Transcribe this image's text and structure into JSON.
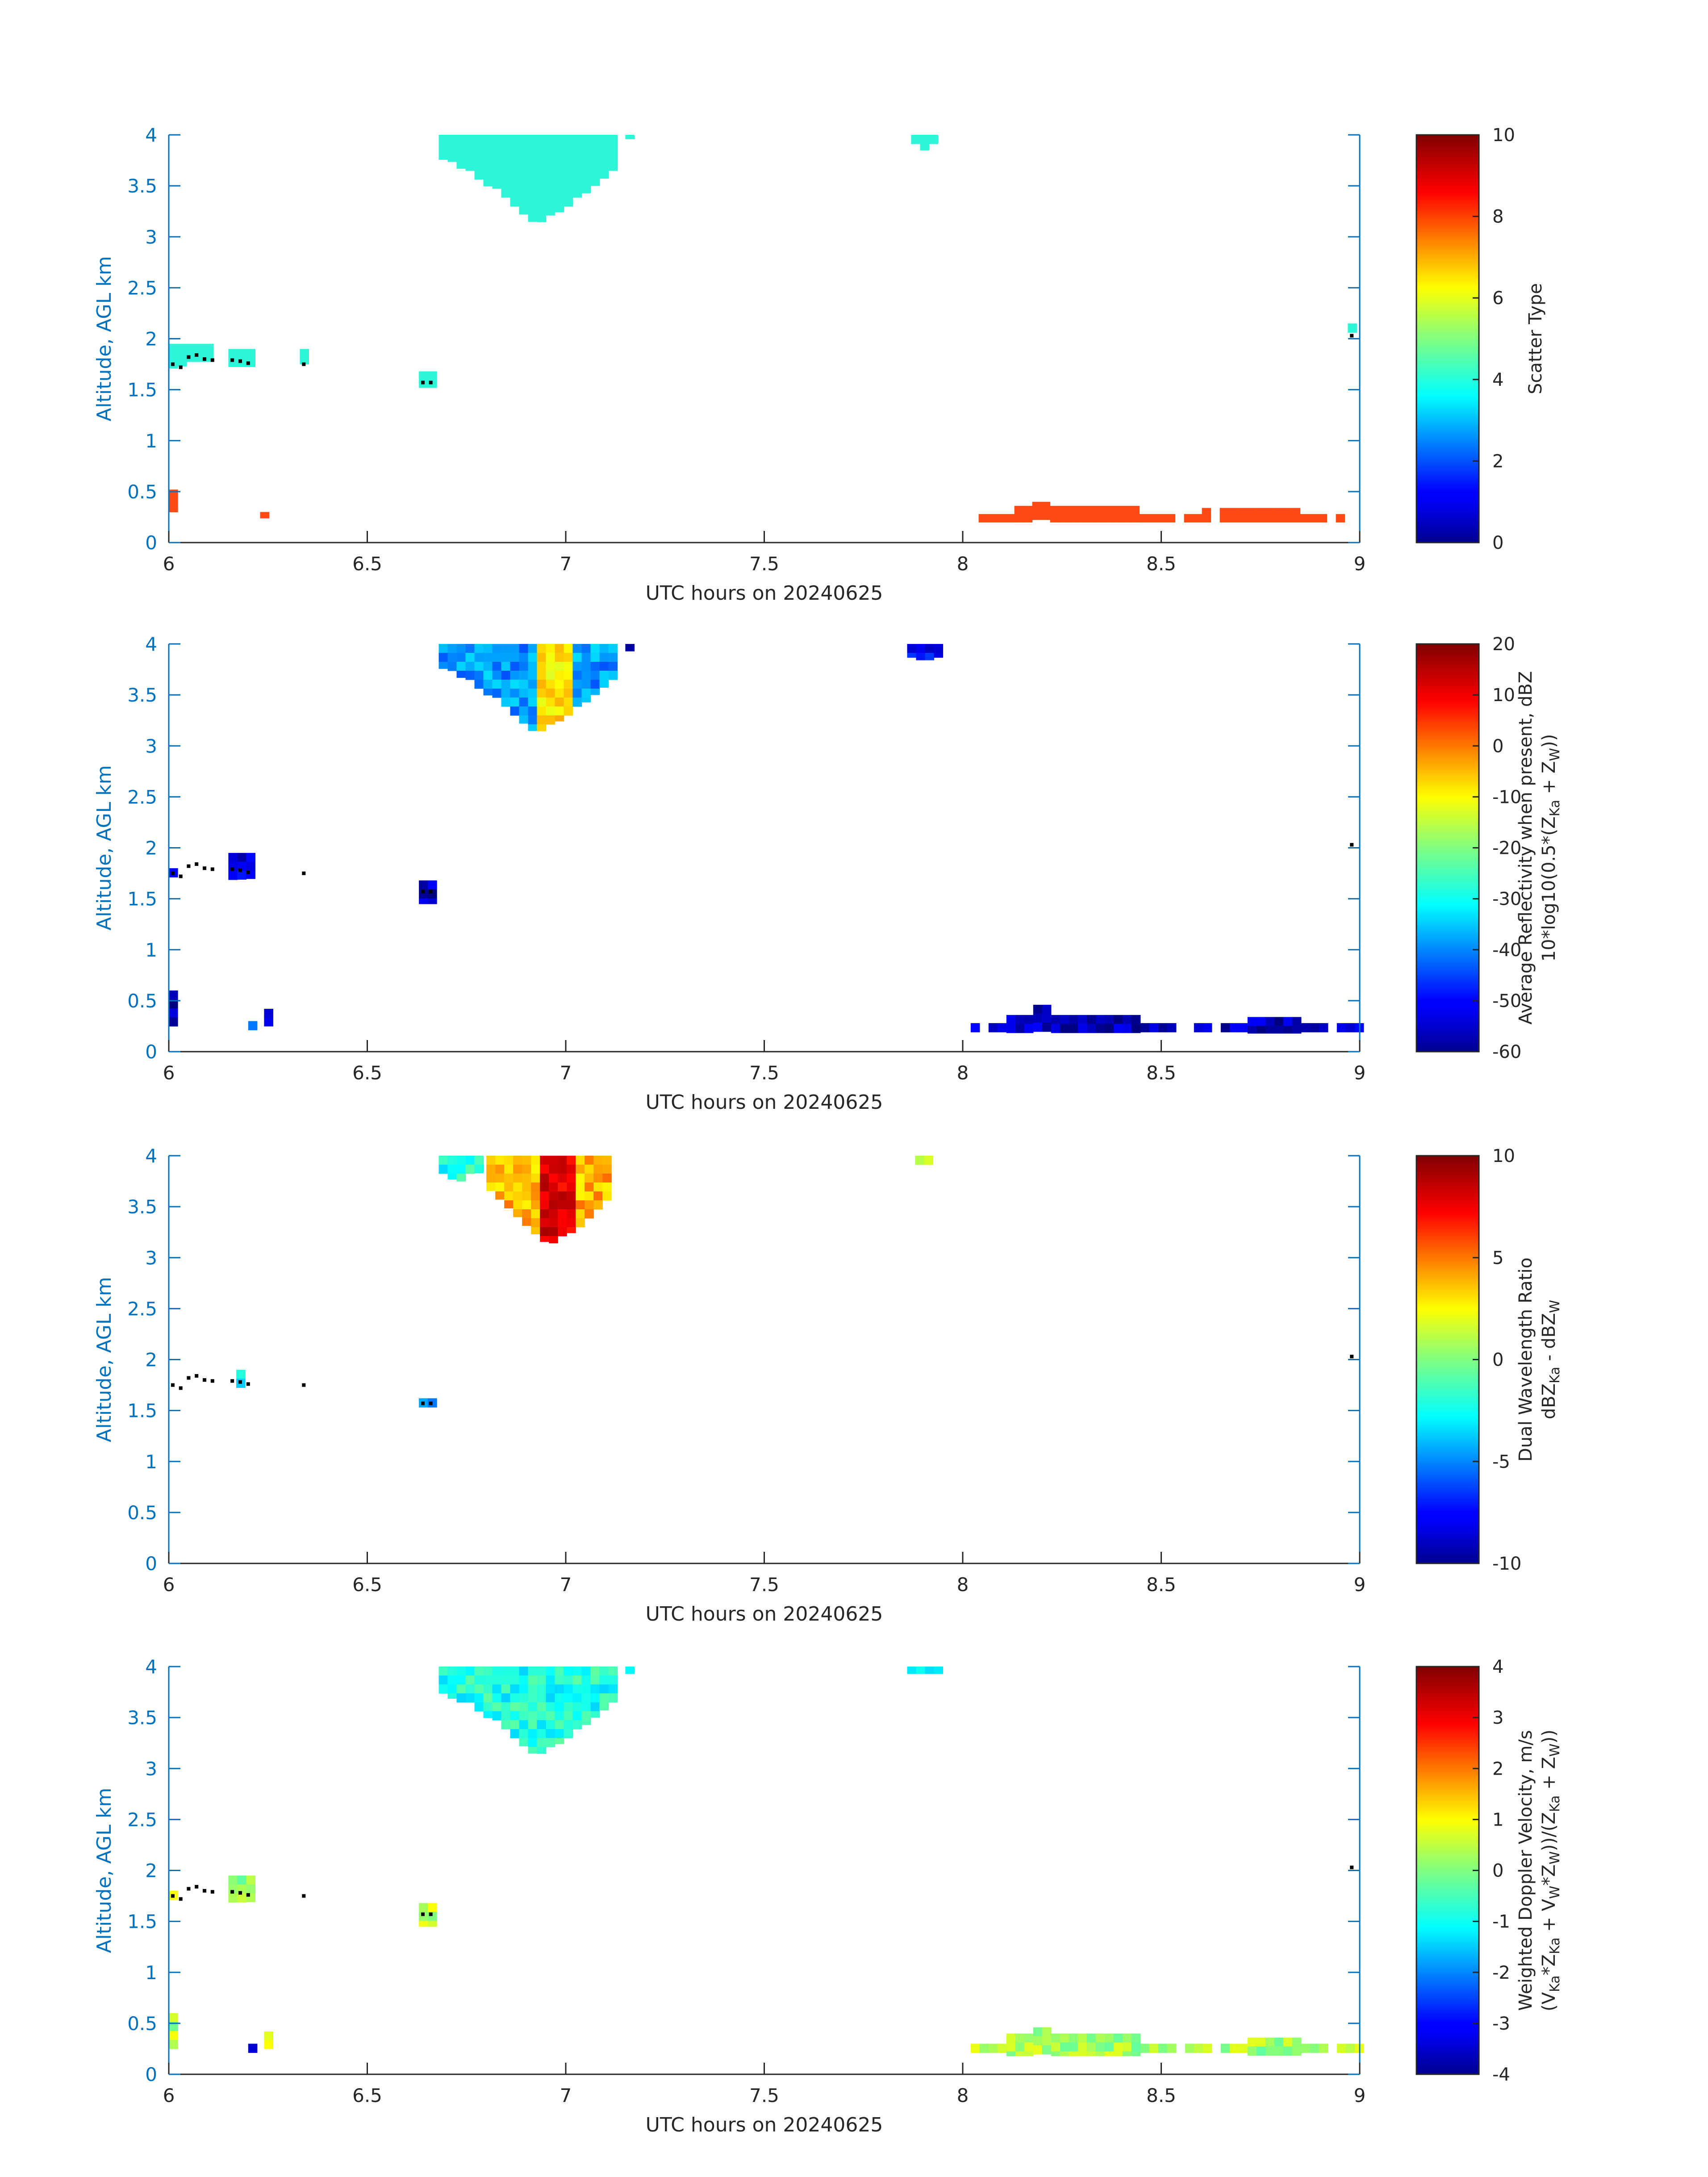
{
  "colors": {
    "y_axis": "#0072bd",
    "text": "#262626",
    "colormap": "jet",
    "scatter_cloud": "#2ef5d8",
    "scatter_precip": "#ff4a14",
    "marker": "#000000"
  },
  "chart_data": [
    {
      "type": "heatmap",
      "title": "",
      "xlabel": "UTC hours on 20240625",
      "ylabel": "Altitude, AGL km",
      "xlim": [
        6,
        9
      ],
      "ylim": [
        0,
        4
      ],
      "xticks": [
        "6",
        "6.5",
        "7",
        "7.5",
        "8",
        "8.5",
        "9"
      ],
      "yticks": [
        "0",
        "0.5",
        "1",
        "1.5",
        "2",
        "2.5",
        "3",
        "3.5",
        "4"
      ],
      "colorbar": {
        "label_lines": [
          "Scatter Type"
        ],
        "clim": [
          0,
          10
        ],
        "ticks": [
          "0",
          "2",
          "4",
          "6",
          "8",
          "10"
        ]
      },
      "regions": [
        {
          "value": 3.5,
          "x": [
            6.68,
            7.12
          ],
          "top": 4.0,
          "bottom": [
            3.78,
            3.7,
            3.62,
            3.5,
            3.4,
            3.25,
            3.12,
            3.2,
            3.3,
            3.42,
            3.55,
            3.68
          ]
        },
        {
          "value": 3.5,
          "x": [
            7.15,
            7.17
          ],
          "top": 4.0,
          "bottom": [
            3.96
          ]
        },
        {
          "value": 3.5,
          "x": [
            7.87,
            7.93
          ],
          "top": 4.0,
          "bottom": [
            3.9,
            3.85,
            3.9
          ]
        },
        {
          "value": 3.5,
          "x": [
            6.0,
            6.12
          ],
          "top": 1.95,
          "bottom": [
            1.7,
            1.75,
            1.78
          ]
        },
        {
          "value": 3.5,
          "x": [
            6.15,
            6.22
          ],
          "top": 1.9,
          "bottom": [
            1.72,
            1.7
          ]
        },
        {
          "value": 3.5,
          "x": [
            6.33,
            6.35
          ],
          "top": 1.9,
          "bottom": [
            1.75
          ]
        },
        {
          "value": 3.5,
          "x": [
            6.63,
            6.67
          ],
          "top": 1.68,
          "bottom": [
            1.52
          ]
        },
        {
          "value": 3.5,
          "x": [
            8.97,
            8.99
          ],
          "top": 2.15,
          "bottom": [
            2.02
          ]
        },
        {
          "value": 8.0,
          "x": [
            6.0,
            6.02
          ],
          "top": 0.52,
          "bottom": [
            0.3
          ]
        },
        {
          "value": 8.0,
          "x": [
            6.23,
            6.25
          ],
          "top": 0.3,
          "bottom": [
            0.24
          ]
        },
        {
          "value": 8.0,
          "x": [
            8.04,
            8.97
          ],
          "top": 0.28,
          "bottom": [
            0.2
          ],
          "bumps": [
            [
              8.12,
              8.45,
              0.36
            ],
            [
              8.17,
              8.22,
              0.4
            ],
            [
              8.6,
              8.85,
              0.34
            ]
          ],
          "gaps": [
            [
              8.54,
              8.57
            ],
            [
              8.62,
              8.66
            ],
            [
              8.92,
              8.95
            ]
          ]
        }
      ],
      "markers": {
        "x": [
          6.01,
          6.03,
          6.05,
          6.07,
          6.09,
          6.11,
          6.16,
          6.18,
          6.2,
          6.34,
          6.64,
          6.66,
          8.98
        ],
        "y": [
          1.75,
          1.72,
          1.82,
          1.84,
          1.8,
          1.79,
          1.79,
          1.78,
          1.76,
          1.75,
          1.57,
          1.57,
          2.03
        ]
      }
    },
    {
      "type": "heatmap",
      "title": "",
      "xlabel": "UTC hours on 20240625",
      "ylabel": "Altitude, AGL km",
      "xlim": [
        6,
        9
      ],
      "ylim": [
        0,
        4
      ],
      "xticks": [
        "6",
        "6.5",
        "7",
        "7.5",
        "8",
        "8.5",
        "9"
      ],
      "yticks": [
        "0",
        "0.5",
        "1",
        "1.5",
        "2",
        "2.5",
        "3",
        "3.5",
        "4"
      ],
      "colorbar": {
        "label_lines": [
          "Average Reflectivity when present, dBZ",
          "10*log10(0.5*(Z",
          "Ka",
          " + Z",
          "W",
          "))"
        ],
        "clim": [
          -60,
          20
        ],
        "ticks": [
          "-60",
          "-50",
          "-40",
          "-30",
          "-20",
          "-10",
          "0",
          "10",
          "20"
        ]
      },
      "regions": [
        {
          "value": -38,
          "x": [
            6.68,
            7.12
          ],
          "top": 4.0,
          "bottom": [
            3.78,
            3.7,
            3.62,
            3.5,
            3.4,
            3.25,
            3.12,
            3.2,
            3.3,
            3.42,
            3.55,
            3.68
          ],
          "core": [
            6.92,
            7.02,
            -8
          ]
        },
        {
          "value": -55,
          "x": [
            7.15,
            7.17
          ],
          "top": 4.0,
          "bottom": [
            3.93
          ]
        },
        {
          "value": -50,
          "x": [
            7.86,
            7.94
          ],
          "top": 4.0,
          "bottom": [
            3.88,
            3.83,
            3.88
          ]
        },
        {
          "value": -55,
          "x": [
            6.0,
            6.02
          ],
          "top": 1.8,
          "bottom": [
            1.68
          ]
        },
        {
          "value": -52,
          "x": [
            6.15,
            6.22
          ],
          "top": 1.95,
          "bottom": [
            1.68,
            1.7
          ]
        },
        {
          "value": -55,
          "x": [
            6.63,
            6.67
          ],
          "top": 1.68,
          "bottom": [
            1.45
          ]
        },
        {
          "value": -58,
          "x": [
            6.0,
            6.02
          ],
          "top": 0.6,
          "bottom": [
            0.25
          ]
        },
        {
          "value": -45,
          "x": [
            6.2,
            6.22
          ],
          "top": 0.3,
          "bottom": [
            0.18
          ]
        },
        {
          "value": -55,
          "x": [
            6.24,
            6.26
          ],
          "top": 0.42,
          "bottom": [
            0.25
          ]
        },
        {
          "value": -55,
          "x": [
            8.02,
            9.0
          ],
          "top": 0.28,
          "bottom": [
            0.18
          ],
          "bumps": [
            [
              8.1,
              8.45,
              0.36
            ],
            [
              8.17,
              8.22,
              0.46
            ],
            [
              8.72,
              8.85,
              0.34
            ]
          ],
          "gaps": [
            [
              8.05,
              8.07
            ],
            [
              8.54,
              8.57
            ],
            [
              8.62,
              8.64
            ],
            [
              8.92,
              8.94
            ]
          ]
        }
      ],
      "markers": {
        "x": [
          6.01,
          6.03,
          6.05,
          6.07,
          6.09,
          6.11,
          6.16,
          6.18,
          6.2,
          6.34,
          6.64,
          6.66,
          8.98
        ],
        "y": [
          1.75,
          1.72,
          1.82,
          1.84,
          1.8,
          1.79,
          1.79,
          1.78,
          1.76,
          1.75,
          1.57,
          1.57,
          2.03
        ]
      }
    },
    {
      "type": "heatmap",
      "title": "",
      "xlabel": "UTC hours on 20240625",
      "ylabel": "Altitude, AGL km",
      "xlim": [
        6,
        9
      ],
      "ylim": [
        0,
        4
      ],
      "xticks": [
        "6",
        "6.5",
        "7",
        "7.5",
        "8",
        "8.5",
        "9"
      ],
      "yticks": [
        "0",
        "0.5",
        "1",
        "1.5",
        "2",
        "2.5",
        "3",
        "3.5",
        "4"
      ],
      "colorbar": {
        "label_lines": [
          "Dual Wavelength Ratio",
          "dBZ",
          "Ka",
          " - dBZ",
          "W"
        ],
        "clim": [
          -10,
          10
        ],
        "ticks": [
          "-10",
          "-5",
          "0",
          "5",
          "10"
        ]
      },
      "regions": [
        {
          "value": -2,
          "x": [
            6.68,
            6.8
          ],
          "top": 4.0,
          "bottom": [
            3.8,
            3.75,
            3.85
          ]
        },
        {
          "value": 4,
          "x": [
            6.8,
            7.12
          ],
          "top": 4.0,
          "bottom": [
            3.7,
            3.55,
            3.4,
            3.25,
            3.12,
            3.2,
            3.3,
            3.45,
            3.6
          ],
          "core": [
            6.94,
            7.02,
            8
          ]
        },
        {
          "value": 2,
          "x": [
            7.88,
            7.92
          ],
          "top": 4.0,
          "bottom": [
            3.9
          ]
        },
        {
          "value": -3,
          "x": [
            6.17,
            6.18
          ],
          "top": 1.9,
          "bottom": [
            1.7
          ]
        },
        {
          "value": -4,
          "x": [
            6.63,
            6.67
          ],
          "top": 1.62,
          "bottom": [
            1.5
          ]
        }
      ],
      "markers": {
        "x": [
          6.01,
          6.03,
          6.05,
          6.07,
          6.09,
          6.11,
          6.16,
          6.18,
          6.2,
          6.34,
          6.64,
          6.66,
          8.98
        ],
        "y": [
          1.75,
          1.72,
          1.82,
          1.84,
          1.8,
          1.79,
          1.79,
          1.78,
          1.76,
          1.75,
          1.57,
          1.57,
          2.03
        ]
      }
    },
    {
      "type": "heatmap",
      "title": "",
      "xlabel": "UTC hours on 20240625",
      "ylabel": "Altitude, AGL km",
      "xlim": [
        6,
        9
      ],
      "ylim": [
        0,
        4
      ],
      "xticks": [
        "6",
        "6.5",
        "7",
        "7.5",
        "8",
        "8.5",
        "9"
      ],
      "yticks": [
        "0",
        "0.5",
        "1",
        "1.5",
        "2",
        "2.5",
        "3",
        "3.5",
        "4"
      ],
      "colorbar": {
        "label_lines": [
          "Weighted Doppler Velocity, m/s",
          "(V",
          "Ka",
          "*Z",
          "Ka",
          " + V",
          "W",
          "*Z",
          "W",
          "))/(Z",
          "Ka",
          " + Z",
          "W",
          "))"
        ],
        "clim": [
          -4,
          4
        ],
        "ticks": [
          "-4",
          "-3",
          "-2",
          "-1",
          "0",
          "1",
          "2",
          "3",
          "4"
        ]
      },
      "regions": [
        {
          "value": -0.8,
          "x": [
            6.68,
            7.12
          ],
          "top": 4.0,
          "bottom": [
            3.72,
            3.68,
            3.6,
            3.5,
            3.4,
            3.25,
            3.12,
            3.2,
            3.3,
            3.42,
            3.55,
            3.68
          ]
        },
        {
          "value": -0.8,
          "x": [
            7.15,
            7.17
          ],
          "top": 4.0,
          "bottom": [
            3.93
          ]
        },
        {
          "value": -0.8,
          "x": [
            7.86,
            7.94
          ],
          "top": 4.0,
          "bottom": [
            3.93
          ]
        },
        {
          "value": 0.5,
          "x": [
            6.0,
            6.02
          ],
          "top": 1.8,
          "bottom": [
            1.68
          ]
        },
        {
          "value": 0.2,
          "x": [
            6.15,
            6.22
          ],
          "top": 1.95,
          "bottom": [
            1.65,
            1.7
          ]
        },
        {
          "value": 0.5,
          "x": [
            6.63,
            6.67
          ],
          "top": 1.68,
          "bottom": [
            1.45
          ]
        },
        {
          "value": 0.4,
          "x": [
            6.0,
            6.02
          ],
          "top": 0.6,
          "bottom": [
            0.25
          ]
        },
        {
          "value": -3.8,
          "x": [
            6.2,
            6.22
          ],
          "top": 0.3,
          "bottom": [
            0.18
          ]
        },
        {
          "value": 0.6,
          "x": [
            6.24,
            6.26
          ],
          "top": 0.42,
          "bottom": [
            0.25
          ]
        },
        {
          "value": 0.3,
          "x": [
            8.02,
            9.0
          ],
          "top": 0.3,
          "bottom": [
            0.18
          ],
          "bumps": [
            [
              8.1,
              8.45,
              0.4
            ],
            [
              8.17,
              8.22,
              0.46
            ],
            [
              8.72,
              8.85,
              0.36
            ]
          ],
          "gaps": [
            [
              8.54,
              8.56
            ],
            [
              8.62,
              8.64
            ],
            [
              8.92,
              8.94
            ]
          ]
        }
      ],
      "markers": {
        "x": [
          6.01,
          6.03,
          6.05,
          6.07,
          6.09,
          6.11,
          6.16,
          6.18,
          6.2,
          6.34,
          6.64,
          6.66,
          8.98
        ],
        "y": [
          1.75,
          1.72,
          1.82,
          1.84,
          1.8,
          1.79,
          1.79,
          1.78,
          1.76,
          1.75,
          1.57,
          1.57,
          2.03
        ]
      }
    }
  ]
}
